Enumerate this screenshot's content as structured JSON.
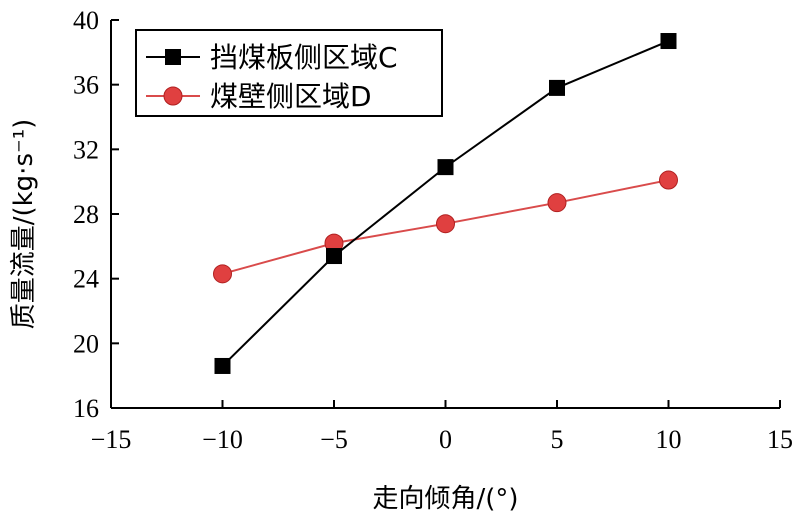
{
  "colors": {
    "series_c": "#000000",
    "series_d_line": "#d94b4b",
    "series_d_marker": "#e04040",
    "axis": "#000000"
  },
  "chart_data": {
    "type": "line",
    "title": "",
    "xlabel": "走向倾角/(°)",
    "ylabel": "质量流量/(kg·s⁻¹)",
    "xlim": [
      -15,
      15
    ],
    "ylim": [
      16,
      40
    ],
    "xticks": [
      -15,
      -10,
      -5,
      0,
      5,
      10,
      15
    ],
    "xtick_labels": [
      "−15",
      "−10",
      "−5",
      "0",
      "5",
      "10",
      "15"
    ],
    "yticks": [
      16,
      20,
      24,
      28,
      32,
      36,
      40
    ],
    "ytick_labels": [
      "16",
      "20",
      "24",
      "28",
      "32",
      "36",
      "40"
    ],
    "grid": false,
    "legend_position": "top-left",
    "x": [
      -10,
      -5,
      0,
      5,
      10
    ],
    "series": [
      {
        "name": "挡煤板侧区域C",
        "marker": "square",
        "values": [
          18.6,
          25.4,
          30.9,
          35.8,
          38.7
        ]
      },
      {
        "name": "煤壁侧区域D",
        "marker": "circle",
        "values": [
          24.3,
          26.2,
          27.4,
          28.7,
          30.1
        ]
      }
    ]
  }
}
